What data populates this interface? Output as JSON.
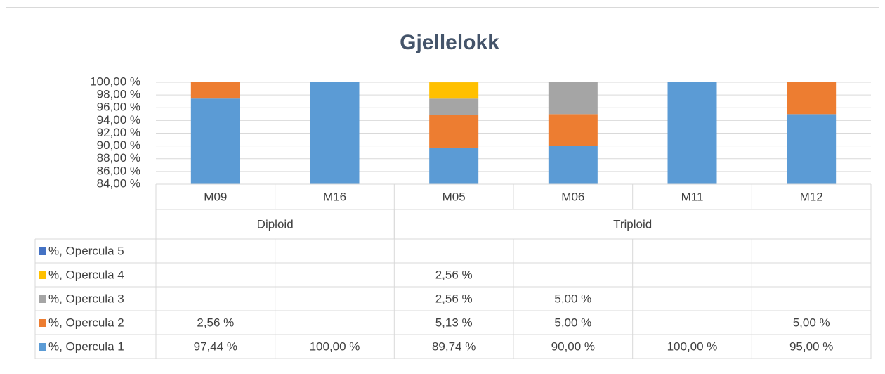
{
  "chart_data": {
    "type": "stacked_bar",
    "title": "Gjellelokk",
    "groups": [
      {
        "name": "Diploid",
        "categories": [
          "M09",
          "M16"
        ]
      },
      {
        "name": "Triploid",
        "categories": [
          "M05",
          "M06",
          "M11",
          "M12"
        ]
      }
    ],
    "series": [
      {
        "name": "%, Opercula 1",
        "color": "#5b9bd5",
        "values": [
          97.44,
          100,
          89.74,
          90,
          100,
          95
        ],
        "value_labels": [
          "97,44 %",
          "100,00 %",
          "89,74 %",
          "90,00 %",
          "100,00 %",
          "95,00 %"
        ]
      },
      {
        "name": "%, Opercula 2",
        "color": "#ed7d31",
        "values": [
          2.56,
          null,
          5.13,
          5,
          null,
          5
        ],
        "value_labels": [
          "2,56 %",
          null,
          "5,13 %",
          "5,00 %",
          null,
          "5,00 %"
        ]
      },
      {
        "name": "%, Opercula 3",
        "color": "#a5a5a5",
        "values": [
          null,
          null,
          2.56,
          5,
          null,
          null
        ],
        "value_labels": [
          null,
          null,
          "2,56 %",
          "5,00 %",
          null,
          null
        ]
      },
      {
        "name": "%, Opercula 4",
        "color": "#ffc000",
        "values": [
          null,
          null,
          2.56,
          null,
          null,
          null
        ],
        "value_labels": [
          null,
          null,
          "2,56 %",
          null,
          null,
          null
        ]
      },
      {
        "name": "%, Opercula 5",
        "color": "#4472c4",
        "values": [
          null,
          null,
          null,
          null,
          null,
          null
        ],
        "value_labels": [
          null,
          null,
          null,
          null,
          null,
          null
        ]
      }
    ],
    "ylim": [
      84,
      100
    ],
    "yticks": [
      {
        "value": 84,
        "label": "84,00 %"
      },
      {
        "value": 86,
        "label": "86,00 %"
      },
      {
        "value": 88,
        "label": "88,00 %"
      },
      {
        "value": 90,
        "label": "90,00 %"
      },
      {
        "value": 92,
        "label": "92,00 %"
      },
      {
        "value": 94,
        "label": "94,00 %"
      },
      {
        "value": 96,
        "label": "96,00 %"
      },
      {
        "value": 98,
        "label": "98,00 %"
      },
      {
        "value": 100,
        "label": "100,00 %"
      }
    ],
    "grid": true
  }
}
